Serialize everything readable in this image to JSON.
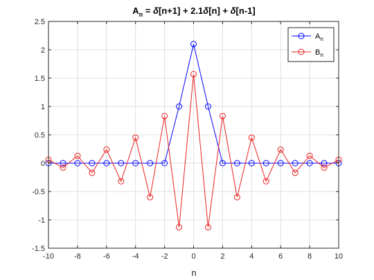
{
  "chart_data": {
    "type": "line",
    "title_parts": {
      "a": "A",
      "n": "n",
      "eq": " = ",
      "delta": "δ",
      "t1": "[n+1] + 2.1",
      "t2": "[n] + ",
      "t3": "[n-1]"
    },
    "xlabel": "n",
    "ylabel": "",
    "xlim": [
      -10,
      10
    ],
    "ylim": [
      -1.5,
      2.5
    ],
    "xticks": [
      -10,
      -8,
      -6,
      -4,
      -2,
      0,
      2,
      4,
      6,
      8,
      10
    ],
    "yticks": [
      -1.5,
      -1,
      -0.5,
      0,
      0.5,
      1,
      1.5,
      2,
      2.5
    ],
    "xtick_labels": [
      "-10",
      "-8",
      "-6",
      "-4",
      "-2",
      "0",
      "2",
      "4",
      "6",
      "8",
      "10"
    ],
    "ytick_labels": [
      "-1.5",
      "-1",
      "-0.5",
      "0",
      "0.5",
      "1",
      "1.5",
      "2",
      "2.5"
    ],
    "grid": true,
    "legend_position": "top-right",
    "x": [
      -10,
      -9,
      -8,
      -7,
      -6,
      -5,
      -4,
      -3,
      -2,
      -1,
      0,
      1,
      2,
      3,
      4,
      5,
      6,
      7,
      8,
      9,
      10
    ],
    "series": [
      {
        "legend_main": "A",
        "legend_sub": "n",
        "color": "#0000ff",
        "marker": "circle",
        "values": [
          0,
          0,
          0,
          0,
          0,
          0,
          0,
          0,
          0,
          1,
          2.1,
          1,
          0,
          0,
          0,
          0,
          0,
          0,
          0,
          0,
          0
        ]
      },
      {
        "legend_main": "B",
        "legend_sub": "n",
        "color": "#e8201e",
        "marker": "circle",
        "values": [
          0.06,
          -0.08,
          0.13,
          -0.17,
          0.24,
          -0.32,
          0.45,
          -0.6,
          0.83,
          -1.13,
          1.57,
          -1.13,
          0.83,
          -0.6,
          0.45,
          -0.32,
          0.24,
          -0.17,
          0.13,
          -0.08,
          0.06
        ]
      }
    ]
  }
}
